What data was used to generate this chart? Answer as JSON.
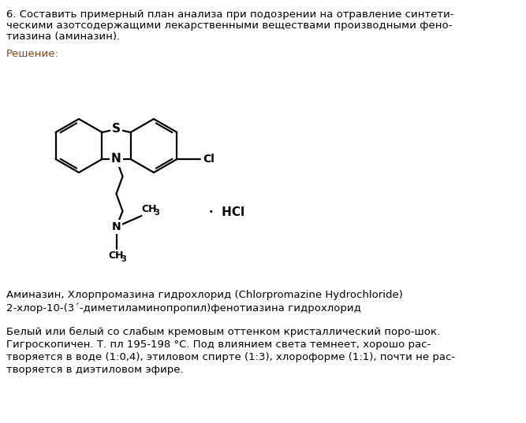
{
  "title_line1": "6. Составить примерный план анализа при подозрении на отравление синтети-",
  "title_line2": "ческими азотсодержащими лекарственными веществами производными фено-",
  "title_line3": "тиазина (аминазин).",
  "solution_label": "Решение:",
  "name_line1": "Аминазин, Хлорпромазина гидрохлорид (Chlorpromazine Hydrochloride)",
  "name_line2": "2-хлор-10-(3´-диметиламинопропил)фенотиазина гидрохлорид",
  "desc_line1": "Белый или белый со слабым кремовым оттенком кристаллический поро-шок.",
  "desc_line2": "Гигроскопичен. Т. пл 195-198 °С. Под влиянием света темнеет, хорошо рас-",
  "desc_line3": "творяется в воде (1:0,4), этиловом спирте (1:3), хлороформе (1:1), почти не рас-",
  "desc_line4": "творяется в диэтиловом эфире.",
  "title_color": "#000000",
  "solution_color": "#8B4513",
  "text_color": "#000000",
  "bg_color": "#ffffff",
  "font_size": 9.5
}
